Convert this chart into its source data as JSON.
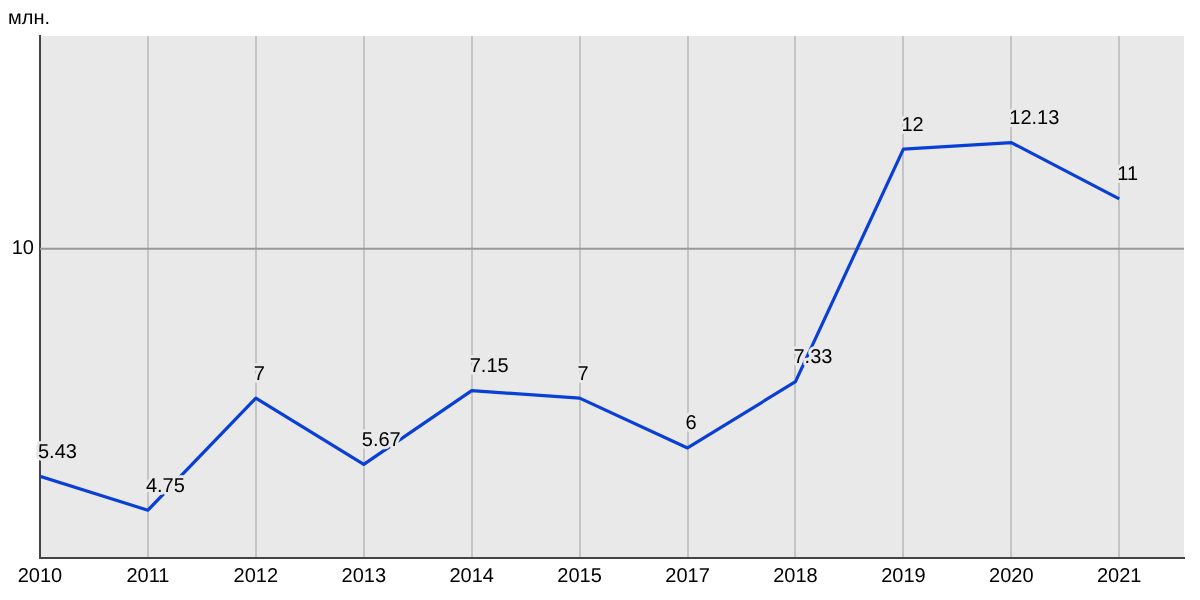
{
  "chart_data": {
    "type": "line",
    "annotations": [
      "млн."
    ],
    "categories": [
      "2010",
      "2011",
      "2012",
      "2013",
      "2014",
      "2015",
      "2017",
      "2018",
      "2019",
      "2020",
      "2021"
    ],
    "series": [
      {
        "color": "#0a3fd6",
        "values": [
          5.43,
          4.75,
          7,
          5.67,
          7.15,
          7,
          6,
          7.33,
          12,
          12.13,
          11
        ]
      }
    ],
    "ref_lines": [
      {
        "axis": "y",
        "value": 10,
        "label": "10",
        "color": "#999999"
      }
    ],
    "grid": "x",
    "data_labels": true,
    "marker": "none",
    "line_style": "solid"
  }
}
